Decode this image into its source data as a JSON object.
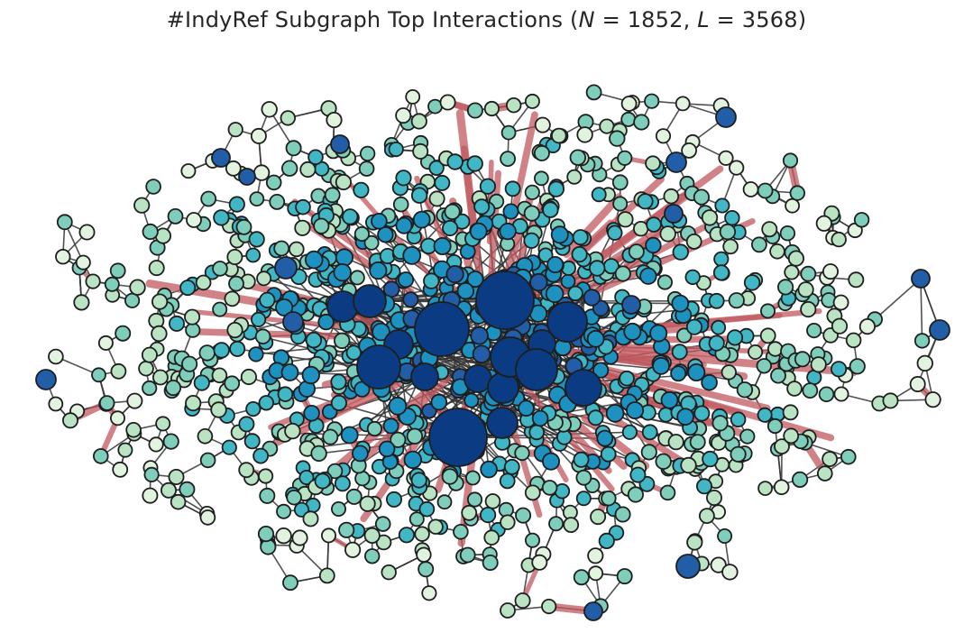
{
  "figure": {
    "title_prefix": "#IndyRef Subgraph Top Interactions (",
    "title_n_symbol": "N",
    "title_n_value": " = 1852, ",
    "title_l_symbol": "L",
    "title_l_value": " = 3568",
    "title_suffix": ")"
  },
  "graph": {
    "node_count": 1852,
    "link_count": 3568,
    "node_color_scale": [
      "#e2f3df",
      "#b9e3c3",
      "#7fcdbb",
      "#41b6c4",
      "#1d91c0",
      "#225ea8",
      "#0b3c83"
    ],
    "node_outline_color": "#1e1e1e",
    "edge_color": "#333333",
    "highlight_edge_color": "#c0585f"
  }
}
